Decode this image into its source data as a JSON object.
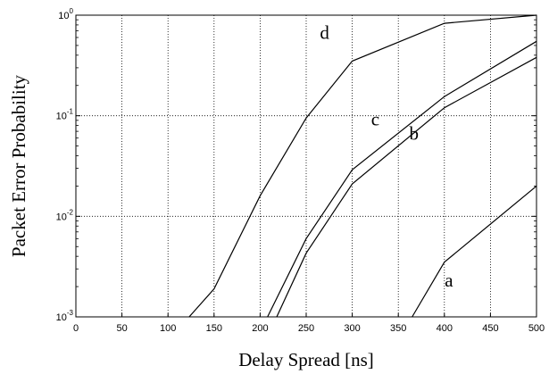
{
  "chart_data": {
    "type": "line",
    "title": "",
    "xlabel": "Delay Spread [ns]",
    "ylabel": "Packet Error Probability",
    "xlim": [
      0,
      500
    ],
    "ylim": [
      0.001,
      1
    ],
    "yscale": "log",
    "grid": true,
    "xticks": [
      "0",
      "50",
      "100",
      "150",
      "200",
      "250",
      "300",
      "350",
      "400",
      "450",
      "500"
    ],
    "yticks": [
      {
        "base": "10",
        "exp": "-3"
      },
      {
        "base": "10",
        "exp": "-2"
      },
      {
        "base": "10",
        "exp": "-1"
      },
      {
        "base": "10",
        "exp": "0"
      }
    ],
    "series": [
      {
        "name": "a",
        "x": [
          365,
          400,
          500
        ],
        "y": [
          0.001,
          0.0035,
          0.02
        ]
      },
      {
        "name": "b",
        "x": [
          218,
          250,
          300,
          400,
          500
        ],
        "y": [
          0.001,
          0.0043,
          0.021,
          0.12,
          0.38
        ]
      },
      {
        "name": "c",
        "x": [
          208,
          250,
          300,
          400,
          500
        ],
        "y": [
          0.001,
          0.006,
          0.029,
          0.155,
          0.55
        ]
      },
      {
        "name": "d",
        "x": [
          123,
          150,
          200,
          250,
          300,
          400,
          500
        ],
        "y": [
          0.001,
          0.0019,
          0.016,
          0.095,
          0.35,
          0.83,
          1.0
        ]
      }
    ]
  }
}
